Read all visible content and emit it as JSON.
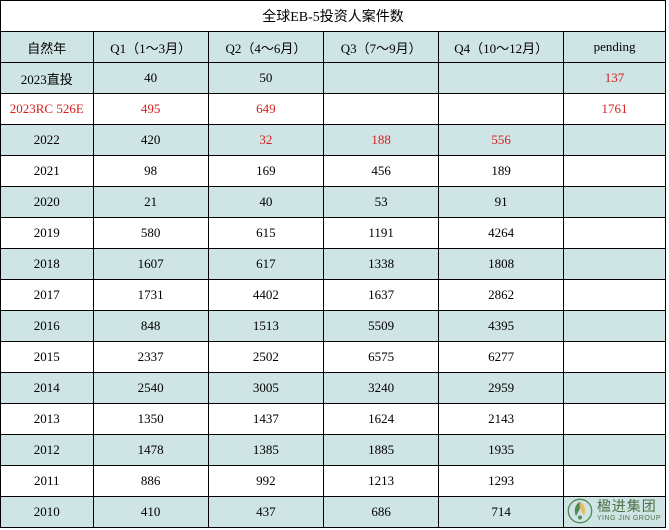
{
  "table": {
    "title": "全球EB-5投资人案件数",
    "columns": [
      "自然年",
      "Q1（1～3月）",
      "Q2（4～6月）",
      "Q3（7～9月）",
      "Q4（10～12月）",
      "pending"
    ],
    "rows": [
      {
        "bg": "#cfe4e4",
        "cells": [
          {
            "v": "2023直投"
          },
          {
            "v": "40"
          },
          {
            "v": "50"
          },
          {
            "v": ""
          },
          {
            "v": ""
          },
          {
            "v": "137",
            "red": true
          }
        ]
      },
      {
        "bg": "#ffffff",
        "cells": [
          {
            "v": "2023RC 526E",
            "red": true
          },
          {
            "v": "495",
            "red": true
          },
          {
            "v": "649",
            "red": true
          },
          {
            "v": ""
          },
          {
            "v": ""
          },
          {
            "v": "1761",
            "red": true
          }
        ]
      },
      {
        "bg": "#cfe4e4",
        "cells": [
          {
            "v": "2022"
          },
          {
            "v": "420"
          },
          {
            "v": "32",
            "red": true
          },
          {
            "v": "188",
            "red": true
          },
          {
            "v": "556",
            "red": true
          },
          {
            "v": ""
          }
        ]
      },
      {
        "bg": "#ffffff",
        "cells": [
          {
            "v": "2021"
          },
          {
            "v": "98"
          },
          {
            "v": "169"
          },
          {
            "v": "456"
          },
          {
            "v": "189"
          },
          {
            "v": ""
          }
        ]
      },
      {
        "bg": "#cfe4e4",
        "cells": [
          {
            "v": "2020"
          },
          {
            "v": "21"
          },
          {
            "v": "40"
          },
          {
            "v": "53"
          },
          {
            "v": "91"
          },
          {
            "v": ""
          }
        ]
      },
      {
        "bg": "#ffffff",
        "cells": [
          {
            "v": "2019"
          },
          {
            "v": "580"
          },
          {
            "v": "615"
          },
          {
            "v": "1191"
          },
          {
            "v": "4264"
          },
          {
            "v": ""
          }
        ]
      },
      {
        "bg": "#cfe4e4",
        "cells": [
          {
            "v": "2018"
          },
          {
            "v": "1607"
          },
          {
            "v": "617"
          },
          {
            "v": "1338"
          },
          {
            "v": "1808"
          },
          {
            "v": ""
          }
        ]
      },
      {
        "bg": "#ffffff",
        "cells": [
          {
            "v": "2017"
          },
          {
            "v": "1731"
          },
          {
            "v": "4402"
          },
          {
            "v": "1637"
          },
          {
            "v": "2862"
          },
          {
            "v": ""
          }
        ]
      },
      {
        "bg": "#cfe4e4",
        "cells": [
          {
            "v": "2016"
          },
          {
            "v": "848"
          },
          {
            "v": "1513"
          },
          {
            "v": "5509"
          },
          {
            "v": "4395"
          },
          {
            "v": ""
          }
        ]
      },
      {
        "bg": "#ffffff",
        "cells": [
          {
            "v": "2015"
          },
          {
            "v": "2337"
          },
          {
            "v": "2502"
          },
          {
            "v": "6575"
          },
          {
            "v": "6277"
          },
          {
            "v": ""
          }
        ]
      },
      {
        "bg": "#cfe4e4",
        "cells": [
          {
            "v": "2014"
          },
          {
            "v": "2540"
          },
          {
            "v": "3005"
          },
          {
            "v": "3240"
          },
          {
            "v": "2959"
          },
          {
            "v": ""
          }
        ]
      },
      {
        "bg": "#ffffff",
        "cells": [
          {
            "v": "2013"
          },
          {
            "v": "1350"
          },
          {
            "v": "1437"
          },
          {
            "v": "1624"
          },
          {
            "v": "2143"
          },
          {
            "v": ""
          }
        ]
      },
      {
        "bg": "#cfe4e4",
        "cells": [
          {
            "v": "2012"
          },
          {
            "v": "1478"
          },
          {
            "v": "1385"
          },
          {
            "v": "1885"
          },
          {
            "v": "1935"
          },
          {
            "v": ""
          }
        ]
      },
      {
        "bg": "#ffffff",
        "cells": [
          {
            "v": "2011"
          },
          {
            "v": "886"
          },
          {
            "v": "992"
          },
          {
            "v": "1213"
          },
          {
            "v": "1293"
          },
          {
            "v": ""
          }
        ]
      },
      {
        "bg": "#cfe4e4",
        "cells": [
          {
            "v": "2010"
          },
          {
            "v": "410"
          },
          {
            "v": "437"
          },
          {
            "v": "686"
          },
          {
            "v": "714"
          },
          {
            "v": ""
          }
        ]
      }
    ],
    "title_bg": "#ffffff",
    "header_bg": "#cfe4e4",
    "text_color": "#000000",
    "red_color": "#d6201f"
  },
  "watermark": {
    "cn": "楹进集团",
    "en": "YING JIN GROUP",
    "icon_color_outer": "#3a7a3a",
    "icon_color_inner": "#e8b84a"
  }
}
